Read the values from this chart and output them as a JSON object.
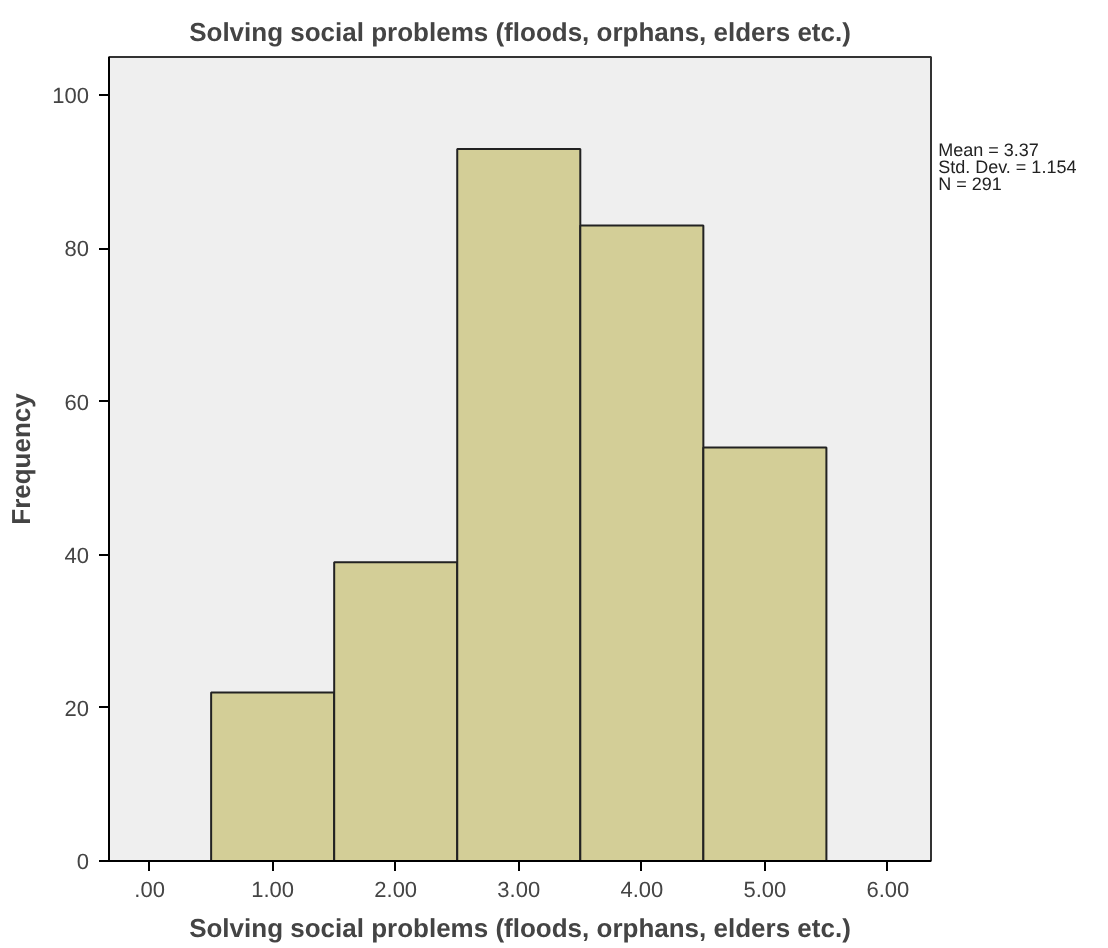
{
  "chart_data": {
    "type": "histogram",
    "title": "Solving social problems (floods, orphans, elders etc.)",
    "xlabel": "Solving social problems (floods, orphans, elders etc.)",
    "ylabel": "Frequency",
    "bins": [
      0.5,
      1.5,
      2.5,
      3.5,
      4.5,
      5.5
    ],
    "values": [
      22,
      39,
      93,
      83,
      54
    ],
    "color": "#d3ce97",
    "xlim": [
      -0.33,
      6.35
    ],
    "ylim": [
      0,
      105
    ],
    "xticks": [
      {
        "value": 0,
        "label": ".00"
      },
      {
        "value": 1,
        "label": "1.00"
      },
      {
        "value": 2,
        "label": "2.00"
      },
      {
        "value": 3,
        "label": "3.00"
      },
      {
        "value": 4,
        "label": "4.00"
      },
      {
        "value": 5,
        "label": "5.00"
      },
      {
        "value": 6,
        "label": "6.00"
      }
    ],
    "yticks": [
      0,
      20,
      40,
      60,
      80,
      100
    ],
    "grid": false,
    "annotations": [
      "Mean = 3.37",
      "Std. Dev. = 1.154",
      "N = 291"
    ]
  }
}
